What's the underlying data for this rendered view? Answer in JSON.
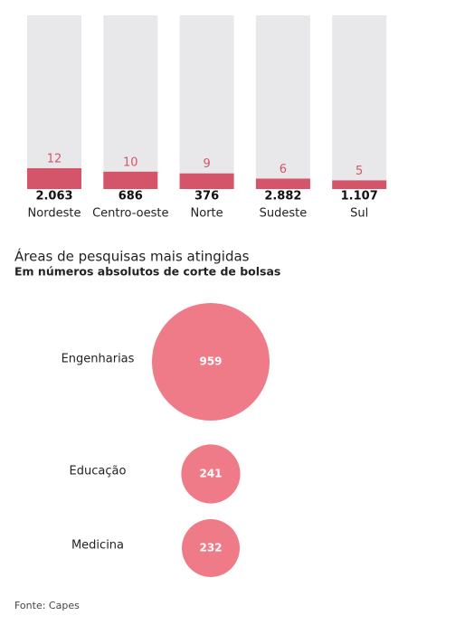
{
  "chart_data": [
    {
      "type": "bar",
      "categories": [
        "Nordeste",
        "Centro-oeste",
        "Norte",
        "Sudeste",
        "Sul"
      ],
      "values": [
        12,
        10,
        9,
        6,
        5
      ],
      "totals": [
        "2.063",
        "686",
        "376",
        "2.882",
        "1.107"
      ],
      "ylim": [
        0,
        100
      ],
      "color": "#d4546a",
      "background_color": "#e8e8ea"
    },
    {
      "type": "bubble",
      "title": "Áreas de pesquisas mais atingidas",
      "subtitle": "Em números absolutos de corte de bolsas",
      "categories": [
        "Engenharias",
        "Educação",
        "Medicina"
      ],
      "values": [
        959,
        241,
        232
      ],
      "color": "#f07b88"
    }
  ],
  "footer": {
    "source": "Fonte: Capes"
  }
}
